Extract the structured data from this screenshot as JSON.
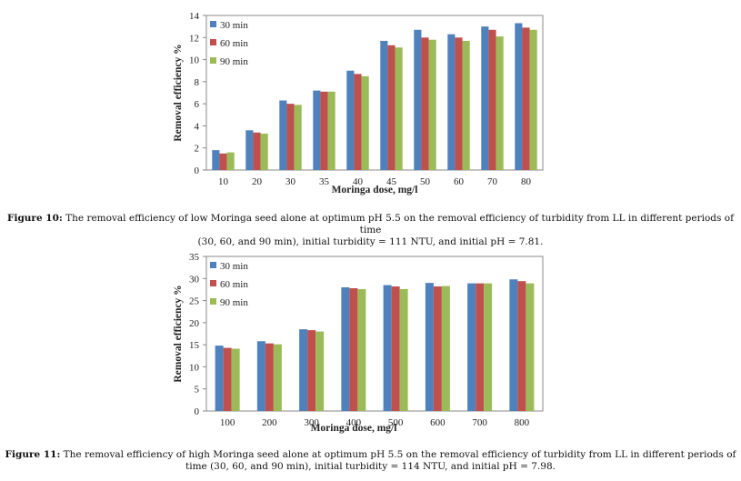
{
  "chart_data": [
    {
      "type": "bar",
      "xlabel": "Moringa dose, mg/l",
      "ylabel": "Removal efficiency %",
      "categories": [
        "10",
        "20",
        "30",
        "35",
        "40",
        "45",
        "50",
        "60",
        "70",
        "80"
      ],
      "ylim": [
        0,
        14
      ],
      "yticks": [
        0,
        2,
        4,
        6,
        8,
        10,
        12,
        14
      ],
      "grid": false,
      "legend": "top-left",
      "series": [
        {
          "name": "30 min",
          "color": "#4f81bd",
          "values": [
            1.8,
            3.6,
            6.3,
            7.2,
            9.0,
            11.7,
            12.7,
            12.3,
            13.0,
            13.3
          ]
        },
        {
          "name": "60 min",
          "color": "#c0504d",
          "values": [
            1.5,
            3.4,
            6.0,
            7.1,
            8.7,
            11.3,
            12.0,
            12.0,
            12.7,
            12.9
          ]
        },
        {
          "name": "90 min",
          "color": "#9bbb59",
          "values": [
            1.6,
            3.3,
            5.9,
            7.1,
            8.5,
            11.1,
            11.8,
            11.7,
            12.1,
            12.7
          ]
        }
      ]
    },
    {
      "type": "bar",
      "xlabel": "Moringa dose, mg/l",
      "ylabel": "Removal efficiency %",
      "categories": [
        "100",
        "200",
        "300",
        "400",
        "500",
        "600",
        "700",
        "800"
      ],
      "ylim": [
        0,
        35
      ],
      "yticks": [
        0,
        5,
        10,
        15,
        20,
        25,
        30,
        35
      ],
      "grid": false,
      "legend": "top-left",
      "series": [
        {
          "name": "30 min",
          "color": "#4f81bd",
          "values": [
            14.8,
            15.8,
            18.5,
            28.0,
            28.5,
            29.0,
            28.9,
            29.8
          ]
        },
        {
          "name": "60 min",
          "color": "#c0504d",
          "values": [
            14.3,
            15.3,
            18.3,
            27.8,
            28.2,
            28.2,
            28.9,
            29.4
          ]
        },
        {
          "name": "90 min",
          "color": "#9bbb59",
          "values": [
            14.1,
            15.1,
            18.0,
            27.6,
            27.6,
            28.3,
            28.9,
            28.9
          ]
        }
      ]
    }
  ],
  "captions": [
    {
      "label": "Figure 10:",
      "line1": " The removal efficiency of low Moringa seed alone at optimum pH 5.5 on the removal efficiency of turbidity from LL in different periods of time",
      "line2": "(30, 60, and 90 min), initial turbidity = 111 NTU, and initial pH = 7.81."
    },
    {
      "label": "Figure 11:",
      "line1": " The removal efficiency of high Moringa seed alone at optimum pH 5.5 on the removal efficiency of turbidity from LL in different periods of",
      "line2": "time (30, 60, and 90 min), initial turbidity = 114 NTU, and initial pH = 7.98."
    }
  ]
}
